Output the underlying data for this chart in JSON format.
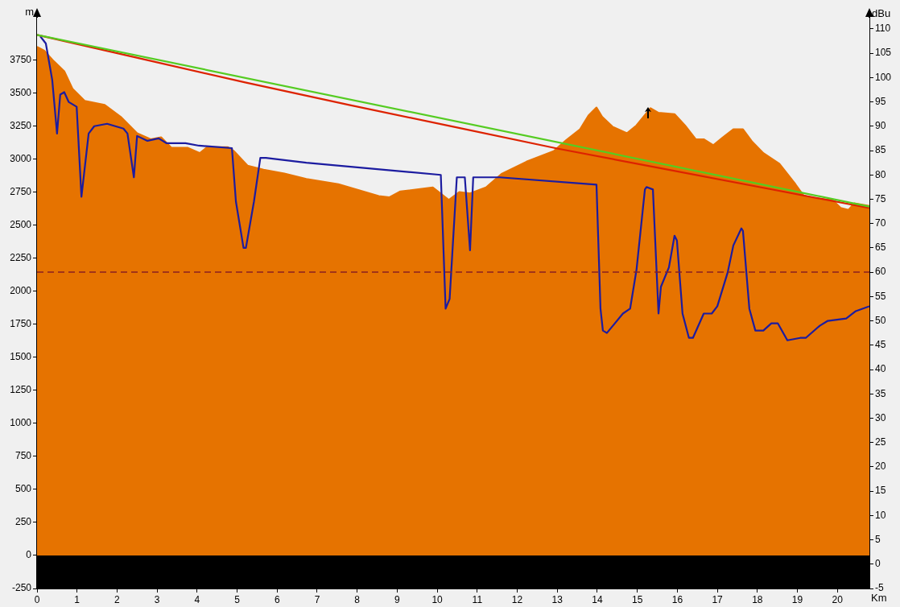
{
  "chart_data": {
    "type": "line",
    "xlabel": "Km",
    "ylabel": "m",
    "y2label": "dBu",
    "xlim": [
      0,
      20.8
    ],
    "xticks": [
      0,
      1,
      2,
      3,
      4,
      5,
      6,
      7,
      8,
      9,
      10,
      11,
      12,
      13,
      14,
      15,
      16,
      17,
      18,
      19,
      20
    ],
    "ylim": [
      -250,
      4070
    ],
    "yticks": [
      -250,
      0,
      250,
      500,
      750,
      1000,
      1250,
      1500,
      1750,
      2000,
      2250,
      2500,
      2750,
      3000,
      3250,
      3500,
      3750
    ],
    "y2lim": [
      -5,
      112.3
    ],
    "y2ticks": [
      -5,
      0,
      5,
      10,
      15,
      20,
      25,
      30,
      35,
      40,
      45,
      50,
      55,
      60,
      65,
      70,
      75,
      80,
      85,
      90,
      95,
      100,
      105,
      110
    ],
    "legend": false,
    "marker": "none",
    "series": [
      {
        "type": "area",
        "color": "#e67300",
        "x": [
          0,
          0.18,
          0.42,
          0.68,
          0.89,
          1.19,
          1.69,
          2.09,
          2.5,
          2.84,
          3.1,
          3.36,
          3.77,
          4.07,
          4.25,
          4.77,
          4.92,
          5.26,
          5.66,
          6.18,
          6.73,
          7.53,
          8.54,
          8.8,
          9.08,
          9.89,
          10.29,
          10.55,
          10.82,
          11.22,
          11.62,
          12.23,
          12.91,
          13.23,
          13.57,
          13.78,
          13.98,
          14.12,
          14.38,
          14.74,
          14.98,
          15.33,
          15.53,
          15.93,
          16.19,
          16.46,
          16.66,
          16.9,
          17.14,
          17.4,
          17.64,
          17.86,
          18.15,
          18.55,
          18.95,
          19.15,
          19.36,
          19.88,
          20.08,
          20.28,
          20.42,
          20.8
        ],
        "values": [
          3850,
          3820,
          3740,
          3665,
          3530,
          3440,
          3410,
          3320,
          3195,
          3150,
          3165,
          3085,
          3085,
          3045,
          3090,
          3090,
          3060,
          2950,
          2920,
          2890,
          2850,
          2810,
          2720,
          2710,
          2755,
          2785,
          2690,
          2750,
          2740,
          2785,
          2890,
          2980,
          3060,
          3145,
          3225,
          3330,
          3390,
          3320,
          3245,
          3195,
          3255,
          3385,
          3350,
          3340,
          3255,
          3150,
          3150,
          3105,
          3165,
          3225,
          3225,
          3135,
          3045,
          2965,
          2810,
          2725,
          2705,
          2690,
          2630,
          2615,
          2665,
          2645
        ]
      },
      {
        "color": "#55cc22",
        "x": [
          0,
          20.8
        ],
        "values": [
          3940,
          2640
        ]
      },
      {
        "color": "#dd2200",
        "x": [
          0,
          2.6,
          5.2,
          7.8,
          10.4,
          13,
          15.6,
          18.2,
          20.8
        ],
        "values": [
          3940,
          3760,
          3580,
          3410,
          3245,
          3080,
          2930,
          2780,
          2630
        ]
      },
      {
        "axis": "y2",
        "color": "#1c1ca0",
        "x": [
          0.08,
          0.22,
          0.38,
          0.5,
          0.58,
          0.68,
          0.79,
          0.99,
          1.11,
          1.29,
          1.43,
          1.75,
          2.16,
          2.26,
          2.42,
          2.5,
          2.76,
          3.04,
          3.24,
          3.71,
          4.05,
          4.87,
          4.97,
          5.16,
          5.22,
          5.42,
          5.58,
          5.72,
          6.73,
          10.09,
          10.21,
          10.31,
          10.49,
          10.69,
          10.82,
          10.9,
          11.56,
          13.98,
          14.08,
          14.14,
          14.24,
          14.44,
          14.64,
          14.82,
          14.98,
          15.19,
          15.23,
          15.39,
          15.53,
          15.59,
          15.79,
          15.93,
          15.99,
          16.13,
          16.29,
          16.39,
          16.66,
          16.86,
          17,
          17.26,
          17.4,
          17.6,
          17.64,
          17.8,
          17.85,
          17.95,
          18.15,
          18.35,
          18.51,
          18.75,
          19.07,
          19.21,
          19.56,
          19.76,
          20.22,
          20.46,
          20.8
        ],
        "values": [
          108.5,
          107,
          99.5,
          88.5,
          96.5,
          97,
          95,
          94,
          75.5,
          88.5,
          90,
          90.5,
          89.5,
          88.5,
          79.5,
          88,
          87,
          87.5,
          86.5,
          86.5,
          86,
          85.5,
          74.5,
          65,
          65,
          74.5,
          83.5,
          83.5,
          82.5,
          80,
          52.5,
          54.5,
          79.5,
          79.5,
          64.5,
          79.5,
          79.5,
          78,
          52.5,
          48,
          47.5,
          49.5,
          51.5,
          52.5,
          60.5,
          77,
          77.5,
          77,
          51.5,
          57,
          61,
          67.5,
          66.5,
          51.5,
          46.5,
          46.5,
          51.5,
          51.5,
          53,
          60,
          65.5,
          69,
          68.5,
          52.5,
          51,
          48,
          48,
          49.5,
          49.5,
          46,
          46.5,
          46.5,
          49,
          50,
          50.5,
          52,
          53
        ]
      }
    ],
    "ref_lines": [
      {
        "axis": "y2",
        "value": 60,
        "color": "#8b2020",
        "line_style": "dashed"
      }
    ],
    "bands": [
      {
        "axis": "y",
        "from": -250,
        "to": 0,
        "color": "#000000"
      }
    ]
  }
}
